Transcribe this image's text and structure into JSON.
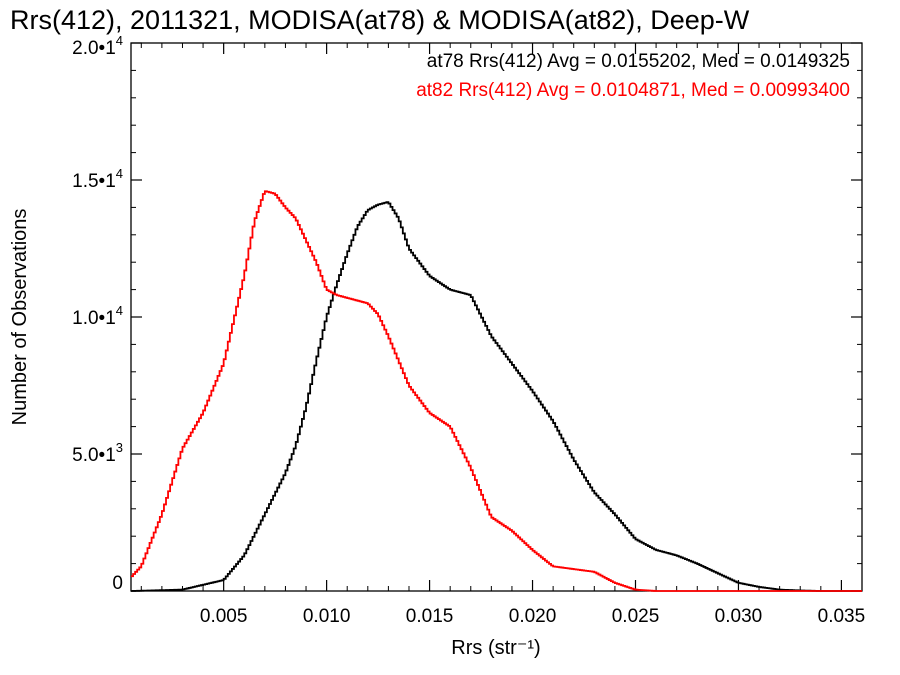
{
  "chart_data": {
    "type": "line",
    "title": "Rrs(412), 2011321, MODISA(at78) & MODISA(at82), Deep-W",
    "xlabel": "Rrs (str⁻¹)",
    "ylabel": "Number of Observations",
    "xlim": [
      0.0005,
      0.036
    ],
    "ylim": [
      0,
      20000
    ],
    "xticks": [
      0.005,
      0.01,
      0.015,
      0.02,
      0.025,
      0.03,
      0.035
    ],
    "xtick_labels": [
      "0.005",
      "0.010",
      "0.015",
      "0.020",
      "0.025",
      "0.030",
      "0.035"
    ],
    "yticks": [
      0,
      5000,
      10000,
      15000,
      20000
    ],
    "ytick_labels": [
      {
        "mantissa": "0",
        "exp": ""
      },
      {
        "mantissa": "5.0•1",
        "exp": "3"
      },
      {
        "mantissa": "1.0•1",
        "exp": "4"
      },
      {
        "mantissa": "1.5•1",
        "exp": "4"
      },
      {
        "mantissa": "2.0•1",
        "exp": "4"
      }
    ],
    "grid": false,
    "legend_position": "top-right",
    "series": [
      {
        "name": "at78",
        "color": "#000000",
        "legend": "at78 Rrs(412) Avg = 0.0155202, Med = 0.0149325",
        "x": [
          0.0005,
          0.003,
          0.005,
          0.006,
          0.007,
          0.008,
          0.0085,
          0.009,
          0.0095,
          0.01,
          0.0105,
          0.011,
          0.0115,
          0.012,
          0.0125,
          0.013,
          0.0135,
          0.014,
          0.015,
          0.016,
          0.017,
          0.018,
          0.019,
          0.02,
          0.021,
          0.022,
          0.023,
          0.024,
          0.025,
          0.026,
          0.027,
          0.028,
          0.029,
          0.03,
          0.031,
          0.032,
          0.033,
          0.034,
          0.036
        ],
        "y": [
          0,
          50,
          400,
          1300,
          2800,
          4300,
          5300,
          6700,
          8400,
          10000,
          11200,
          12300,
          13300,
          13900,
          14100,
          14200,
          13600,
          12500,
          11500,
          11000,
          10800,
          9300,
          8300,
          7300,
          6200,
          4800,
          3600,
          2800,
          1900,
          1500,
          1300,
          1000,
          650,
          300,
          150,
          50,
          20,
          0,
          0
        ]
      },
      {
        "name": "at82",
        "color": "#ff0000",
        "legend": "at82 Rrs(412) Avg = 0.0104871, Med = 0.00993400",
        "x": [
          0.0005,
          0.001,
          0.002,
          0.003,
          0.004,
          0.005,
          0.006,
          0.0065,
          0.007,
          0.0075,
          0.008,
          0.0085,
          0.009,
          0.0095,
          0.01,
          0.0105,
          0.011,
          0.0115,
          0.012,
          0.0125,
          0.013,
          0.014,
          0.015,
          0.016,
          0.017,
          0.018,
          0.019,
          0.02,
          0.021,
          0.022,
          0.023,
          0.024,
          0.025,
          0.026,
          0.027,
          0.036
        ],
        "y": [
          500,
          900,
          2800,
          5200,
          6500,
          8300,
          11500,
          13500,
          14600,
          14500,
          14000,
          13600,
          12800,
          12000,
          11000,
          10800,
          10700,
          10600,
          10500,
          10100,
          9300,
          7500,
          6500,
          6000,
          4500,
          2700,
          2200,
          1500,
          900,
          800,
          700,
          300,
          50,
          0,
          0,
          0
        ]
      }
    ]
  }
}
